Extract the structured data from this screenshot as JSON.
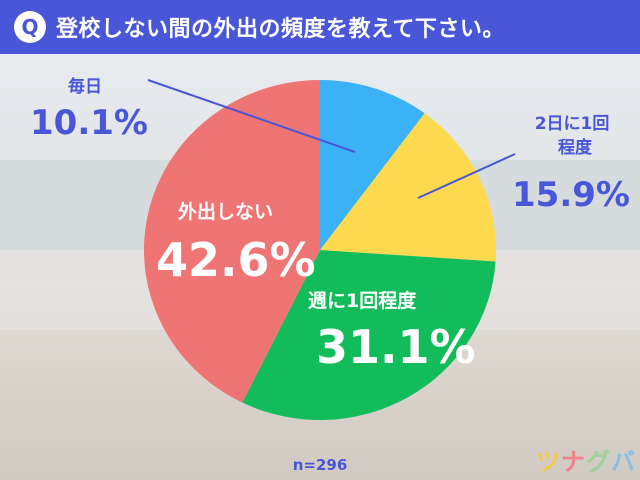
{
  "header": {
    "q_badge": "Q",
    "title": "登校しない間の外出の頻度を教えて下さい。"
  },
  "chart_data": {
    "type": "pie",
    "title": "登校しない間の外出の頻度を教えて下さい。",
    "slices": [
      {
        "label": "毎日",
        "value": 10.1,
        "display": "10.1%",
        "color": "#3ab2f5"
      },
      {
        "label": "2日に1回程度",
        "value": 15.9,
        "display": "15.9%",
        "color": "#fcd94f"
      },
      {
        "label": "週に1回程度",
        "value": 31.1,
        "display": "31.1%",
        "color": "#13bc5b"
      },
      {
        "label": "外出しない",
        "value": 42.6,
        "display": "42.6%",
        "color": "#ef7474"
      }
    ],
    "start_angle": "12 o'clock",
    "direction": "clockwise"
  },
  "footer": {
    "n_label": "n=296",
    "logo": [
      "ツ",
      "ナ",
      "グ",
      "バ"
    ]
  }
}
